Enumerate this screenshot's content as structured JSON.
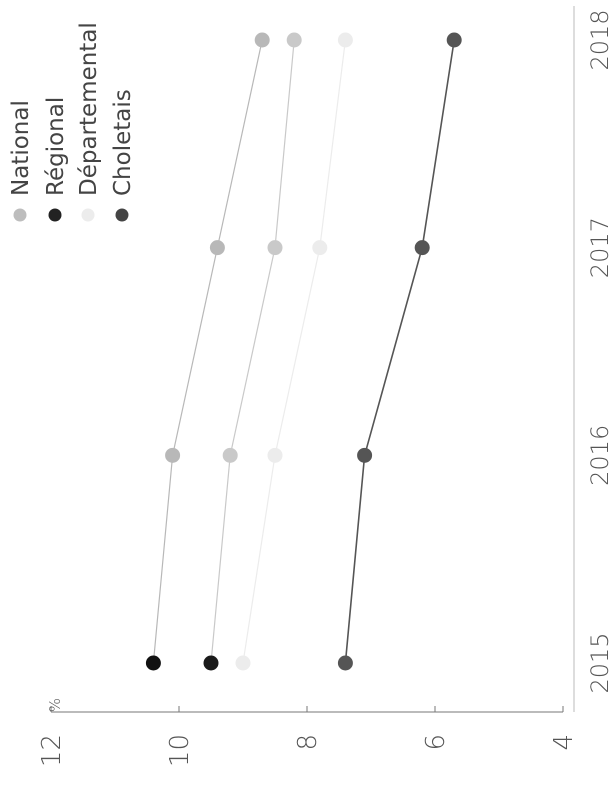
{
  "chart_data": {
    "type": "line",
    "orientation": "rotated-90-clockwise",
    "x": [
      "2015",
      "2016",
      "2017",
      "2018"
    ],
    "y_ticks": [
      "12",
      "10",
      "8",
      "6",
      "4"
    ],
    "y_unit": "%",
    "ylim": [
      4,
      12
    ],
    "series": [
      {
        "name": "National",
        "color": "#b8b8b8",
        "values": [
          10.4,
          10.1,
          9.4,
          8.7
        ]
      },
      {
        "name": "Régional",
        "color": "#c9c9c9",
        "values": [
          9.5,
          9.2,
          8.5,
          8.2
        ]
      },
      {
        "name": "Départemental",
        "color": "#ececec",
        "values": [
          9.0,
          8.5,
          7.8,
          7.4
        ]
      },
      {
        "name": "Choletais",
        "color": "#555555",
        "values": [
          7.4,
          7.1,
          6.2,
          5.7
        ]
      }
    ],
    "first_point_colors": {
      "National": "#111111",
      "Régional": "#1a1a1a"
    },
    "legend_placement": "top-right",
    "grid": false
  }
}
